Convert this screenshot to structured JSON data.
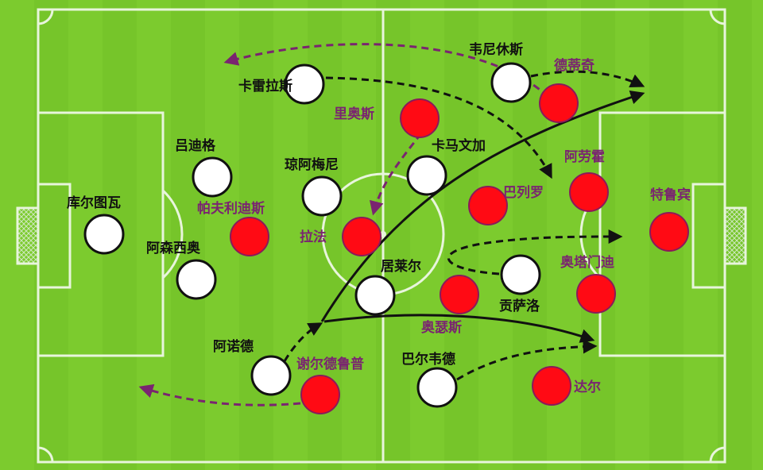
{
  "colors": {
    "pitch": "#7ccb2e",
    "lines": "#e8f5dc",
    "home_fill": "#ffffff",
    "away_fill": "#ff0a14",
    "away_label": "#7a2470",
    "home_label": "#111111",
    "move_arrow": "#111111",
    "away_arrow": "#7a2470"
  },
  "home_players": [
    {
      "name": "卡雷拉斯"
    },
    {
      "name": "韦尼休斯"
    },
    {
      "name": "吕迪格"
    },
    {
      "name": "琼阿梅尼"
    },
    {
      "name": "卡马文加"
    },
    {
      "name": "库尔图瓦"
    },
    {
      "name": "阿森西奥"
    },
    {
      "name": "居莱尔"
    },
    {
      "name": "贡萨洛"
    },
    {
      "name": "阿诺德"
    },
    {
      "name": "巴尔韦德"
    }
  ],
  "away_players": [
    {
      "name": "德蒂奇"
    },
    {
      "name": "里奥斯"
    },
    {
      "name": "阿劳霍"
    },
    {
      "name": "巴列罗"
    },
    {
      "name": "特鲁宾"
    },
    {
      "name": "帕夫利迪斯"
    },
    {
      "name": "拉法"
    },
    {
      "name": "奥塔门迪"
    },
    {
      "name": "奥瑟斯"
    },
    {
      "name": "谢尔德鲁普"
    },
    {
      "name": "达尔"
    }
  ]
}
